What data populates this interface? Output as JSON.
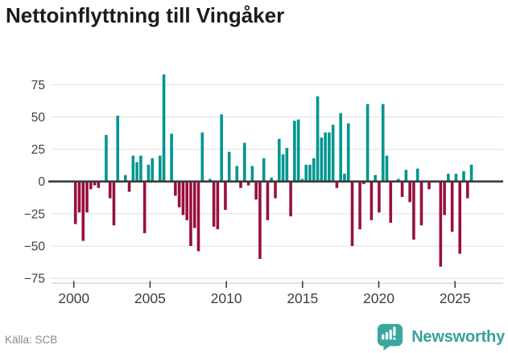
{
  "title": "Nettoinflyttning till Vingåker",
  "source": "Källa: SCB",
  "brand": {
    "name": "Newsworthy"
  },
  "chart_data": {
    "type": "bar",
    "title": "Nettoinflyttning till Vingåker",
    "xlabel": "",
    "ylabel": "",
    "ylim": [
      -75,
      83
    ],
    "grid": "horizontal",
    "legend": "none",
    "yticks": [
      75,
      50,
      25,
      0,
      -25,
      -50,
      -75
    ],
    "xticks": [
      2000,
      2005,
      2010,
      2015,
      2020,
      2025
    ],
    "colors": {
      "positive": "#00968f",
      "negative": "#98103f"
    },
    "categories": [
      "2000 Q1",
      "2000 Q2",
      "2000 Q3",
      "2000 Q4",
      "2001 Q1",
      "2001 Q2",
      "2001 Q3",
      "2001 Q4",
      "2002 Q1",
      "2002 Q2",
      "2002 Q3",
      "2002 Q4",
      "2003 Q1",
      "2003 Q2",
      "2003 Q3",
      "2003 Q4",
      "2004 Q1",
      "2004 Q2",
      "2004 Q3",
      "2004 Q4",
      "2005 Q1",
      "2005 Q2",
      "2005 Q3",
      "2005 Q4",
      "2006 Q1",
      "2006 Q2",
      "2006 Q3",
      "2006 Q4",
      "2007 Q1",
      "2007 Q2",
      "2007 Q3",
      "2007 Q4",
      "2008 Q1",
      "2008 Q2",
      "2008 Q3",
      "2008 Q4",
      "2009 Q1",
      "2009 Q2",
      "2009 Q3",
      "2009 Q4",
      "2010 Q1",
      "2010 Q2",
      "2010 Q3",
      "2010 Q4",
      "2011 Q1",
      "2011 Q2",
      "2011 Q3",
      "2011 Q4",
      "2012 Q1",
      "2012 Q2",
      "2012 Q3",
      "2012 Q4",
      "2013 Q1",
      "2013 Q2",
      "2013 Q3",
      "2013 Q4",
      "2014 Q1",
      "2014 Q2",
      "2014 Q3",
      "2014 Q4",
      "2015 Q1",
      "2015 Q2",
      "2015 Q3",
      "2015 Q4",
      "2016 Q1",
      "2016 Q2",
      "2016 Q3",
      "2016 Q4",
      "2017 Q1",
      "2017 Q2",
      "2017 Q3",
      "2017 Q4",
      "2018 Q1",
      "2018 Q2",
      "2018 Q3",
      "2018 Q4",
      "2019 Q1",
      "2019 Q2",
      "2019 Q3",
      "2019 Q4",
      "2020 Q1",
      "2020 Q2",
      "2020 Q3",
      "2020 Q4",
      "2021 Q1",
      "2021 Q2",
      "2021 Q3",
      "2021 Q4",
      "2022 Q1",
      "2022 Q2",
      "2022 Q3",
      "2022 Q4",
      "2023 Q1",
      "2023 Q2",
      "2023 Q3",
      "2023 Q4",
      "2024 Q1",
      "2024 Q2",
      "2024 Q3",
      "2024 Q4",
      "2025 Q1",
      "2025 Q2",
      "2025 Q3",
      "2025 Q4"
    ],
    "values": [
      -33,
      -24,
      -46,
      -24,
      -6,
      -3,
      -5,
      0,
      36,
      -13,
      -34,
      51,
      0,
      5,
      -8,
      20,
      15,
      20,
      -40,
      13,
      18,
      0,
      20,
      83,
      0,
      37,
      -11,
      -20,
      -26,
      -30,
      -50,
      -36,
      -54,
      38,
      0,
      2,
      -35,
      -37,
      52,
      -22,
      23,
      0,
      12,
      -5,
      30,
      -3,
      12,
      -14,
      -60,
      18,
      -30,
      3,
      -13,
      33,
      21,
      26,
      -27,
      47,
      48,
      2,
      13,
      13,
      18,
      66,
      34,
      38,
      38,
      44,
      -5,
      53,
      6,
      45,
      -50,
      0,
      -37,
      -2,
      60,
      -30,
      5,
      -24,
      60,
      20,
      -32,
      0,
      2,
      -12,
      9,
      -16,
      -45,
      10,
      -34,
      0,
      -6,
      0,
      0,
      -66,
      -26,
      6,
      -39,
      6,
      -56,
      8,
      -13,
      13
    ]
  }
}
